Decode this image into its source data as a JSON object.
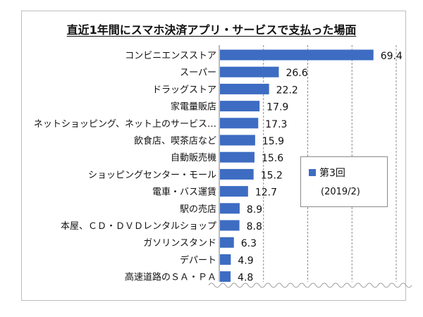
{
  "chart_data": {
    "type": "bar",
    "orientation": "horizontal",
    "title": "直近1年間にスマホ決済アプリ・サービスで支払った場面",
    "categories": [
      "コンビニエンスストア",
      "スーパー",
      "ドラッグストア",
      "家電量販店",
      "ネットショッピング、ネット上のサービス…",
      "飲食店、喫茶店など",
      "自動販売機",
      "ショッピングセンター・モール",
      "電車・バス運賃",
      "駅の売店",
      "本屋、ＣＤ・ＤＶＤレンタルショップ",
      "ガソリンスタンド",
      "デパート",
      "高速道路のＳＡ・ＰＡ"
    ],
    "series": [
      {
        "name": "第3回",
        "values": [
          69.4,
          26.6,
          22.2,
          17.9,
          17.3,
          15.9,
          15.6,
          15.2,
          12.7,
          8.9,
          8.8,
          6.3,
          4.9,
          4.8
        ],
        "labels": [
          "69.4",
          "26.6",
          "22.2",
          "17.9",
          "17.3",
          "15.9",
          "15.6",
          "15.2",
          "12.7",
          "8.9",
          "8.8",
          "6.3",
          "4.9",
          "4.8"
        ]
      }
    ],
    "xlim": [
      0,
      80
    ],
    "grid": "vertical dashed",
    "legend": {
      "position": "right",
      "series_label": "第3回",
      "note": "(2019/2)"
    },
    "bar_color": "#3d6cc2"
  }
}
